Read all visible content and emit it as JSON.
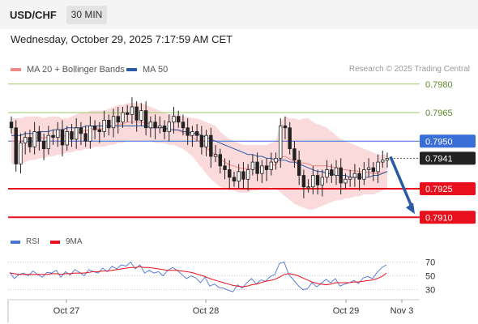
{
  "header": {
    "symbol": "USD/CHF",
    "timeframe": "30 MIN"
  },
  "datetime": "Wednesday, October 29, 2025 7:17:59 AM CET",
  "legend": {
    "ma_label": "MA 20 + Bollinger Bands",
    "ma50_label": "MA 50",
    "rsi_label": "RSI",
    "nine_ma_label": "9MA"
  },
  "credit": "Research © 2025 Trading Central",
  "colors": {
    "ma20": "#f08a8a",
    "bands_fill": "#f9d4d4",
    "ma50": "#2b5aa8",
    "resistance": "#99cc66",
    "support": "#e8101c",
    "pivot": "#3a6fd8",
    "arrow": "#2a59a6",
    "candle": "#222222",
    "rsi": "#4a73d9",
    "nine_ma": "#e8101c"
  },
  "chart_data": {
    "type": "candlestick",
    "x_tick_labels": [
      "Oct 27",
      "Oct 28",
      "Oct 29",
      "Nov 3"
    ],
    "levels": [
      {
        "value": 0.798,
        "label": "0.7980",
        "kind": "resistance"
      },
      {
        "value": 0.7965,
        "label": "0.7965",
        "kind": "resistance"
      },
      {
        "value": 0.795,
        "label": "0.7950",
        "kind": "pivot"
      },
      {
        "value": 0.7941,
        "label": "0.7941",
        "kind": "last"
      },
      {
        "value": 0.7925,
        "label": "0.7925",
        "kind": "support"
      },
      {
        "value": 0.791,
        "label": "0.7910",
        "kind": "support"
      }
    ],
    "price_range": [
      0.7905,
      0.7985
    ],
    "close": [
      0.7957,
      0.7938,
      0.7949,
      0.7952,
      0.7947,
      0.7955,
      0.795,
      0.7946,
      0.7953,
      0.7952,
      0.7956,
      0.7948,
      0.7955,
      0.7951,
      0.7957,
      0.7954,
      0.795,
      0.7958,
      0.7956,
      0.7955,
      0.7961,
      0.7957,
      0.7963,
      0.796,
      0.7965,
      0.7964,
      0.7968,
      0.7961,
      0.7966,
      0.7957,
      0.796,
      0.7957,
      0.7958,
      0.7955,
      0.796,
      0.7963,
      0.796,
      0.7957,
      0.7953,
      0.7955,
      0.7953,
      0.7947,
      0.7953,
      0.7942,
      0.7943,
      0.7937,
      0.7935,
      0.7931,
      0.7929,
      0.7934,
      0.793,
      0.7935,
      0.7939,
      0.7933,
      0.7937,
      0.7935,
      0.7939,
      0.7941,
      0.7958,
      0.7957,
      0.7946,
      0.794,
      0.7932,
      0.7926,
      0.7926,
      0.7932,
      0.7927,
      0.7931,
      0.7935,
      0.7932,
      0.7936,
      0.7928,
      0.793,
      0.7931,
      0.7933,
      0.793,
      0.7935,
      0.7936,
      0.7934,
      0.7939,
      0.794,
      0.7941
    ],
    "bb_upper": [
      0.7962,
      0.7962,
      0.7962,
      0.7963,
      0.7963,
      0.7963,
      0.7963,
      0.7962,
      0.7963,
      0.7963,
      0.7963,
      0.7962,
      0.7962,
      0.7963,
      0.7964,
      0.7965,
      0.7965,
      0.7966,
      0.7966,
      0.7966,
      0.7966,
      0.7967,
      0.7968,
      0.7969,
      0.7969,
      0.797,
      0.797,
      0.797,
      0.797,
      0.7969,
      0.7968,
      0.7967,
      0.7966,
      0.7965,
      0.7964,
      0.7964,
      0.7964,
      0.7963,
      0.7963,
      0.7962,
      0.7962,
      0.7961,
      0.796,
      0.7959,
      0.7958,
      0.7955,
      0.7953,
      0.7951,
      0.795,
      0.7949,
      0.7948,
      0.7948,
      0.7948,
      0.7948,
      0.7948,
      0.7948,
      0.7949,
      0.795,
      0.796,
      0.7963,
      0.7962,
      0.7962,
      0.7961,
      0.7962,
      0.7962,
      0.796,
      0.7959,
      0.7958,
      0.7957,
      0.7955,
      0.7953,
      0.7951,
      0.795,
      0.7949,
      0.7948,
      0.7947,
      0.7946,
      0.7945,
      0.7944,
      0.7943,
      0.7943,
      0.7943
    ],
    "bb_lower": [
      0.7938,
      0.7938,
      0.7938,
      0.7939,
      0.794,
      0.794,
      0.7941,
      0.7941,
      0.7942,
      0.7942,
      0.7943,
      0.7943,
      0.7944,
      0.7944,
      0.7945,
      0.7945,
      0.7946,
      0.7946,
      0.7947,
      0.7947,
      0.7947,
      0.7948,
      0.7948,
      0.7949,
      0.7949,
      0.795,
      0.795,
      0.795,
      0.795,
      0.795,
      0.795,
      0.7949,
      0.7949,
      0.7949,
      0.7948,
      0.7948,
      0.7947,
      0.7946,
      0.7944,
      0.7942,
      0.7939,
      0.7936,
      0.7933,
      0.793,
      0.7928,
      0.7926,
      0.7925,
      0.7924,
      0.7924,
      0.7923,
      0.7923,
      0.7923,
      0.7924,
      0.7924,
      0.7925,
      0.7925,
      0.7926,
      0.7925,
      0.7923,
      0.7921,
      0.7919,
      0.7917,
      0.7916,
      0.7915,
      0.7914,
      0.7914,
      0.7915,
      0.7916,
      0.7917,
      0.7918,
      0.7919,
      0.7919,
      0.792,
      0.792,
      0.7921,
      0.7921,
      0.7922,
      0.7922,
      0.7922,
      0.7923,
      0.7924,
      0.7925
    ],
    "ma50": [
      0.7953,
      0.7953,
      0.7953,
      0.7954,
      0.7954,
      0.7954,
      0.7955,
      0.7955,
      0.7955,
      0.7956,
      0.7956,
      0.7956,
      0.7957,
      0.7957,
      0.7957,
      0.7957,
      0.7958,
      0.7958,
      0.7958,
      0.7958,
      0.7958,
      0.7958,
      0.7958,
      0.7958,
      0.7958,
      0.7958,
      0.7958,
      0.7958,
      0.7958,
      0.7958,
      0.7957,
      0.7957,
      0.7957,
      0.7957,
      0.7956,
      0.7956,
      0.7956,
      0.7955,
      0.7955,
      0.7954,
      0.7954,
      0.7953,
      0.7952,
      0.7951,
      0.795,
      0.7949,
      0.7948,
      0.7947,
      0.7946,
      0.7945,
      0.7944,
      0.7943,
      0.7943,
      0.7942,
      0.7942,
      0.7941,
      0.7941,
      0.794,
      0.794,
      0.794,
      0.7939,
      0.7939,
      0.7938,
      0.7937,
      0.7936,
      0.7935,
      0.7934,
      0.7934,
      0.7933,
      0.7933,
      0.7932,
      0.7932,
      0.7932,
      0.7931,
      0.7931,
      0.7931,
      0.7931,
      0.7931,
      0.7932,
      0.7932,
      0.7933,
      0.7934
    ],
    "forecast": {
      "from": 0.7941,
      "to": 0.791
    },
    "rsi": {
      "ticks": [
        70,
        50,
        30
      ],
      "range": [
        20,
        80
      ],
      "values": [
        55,
        46,
        52,
        54,
        50,
        57,
        52,
        48,
        55,
        54,
        58,
        48,
        56,
        51,
        59,
        55,
        50,
        59,
        56,
        54,
        61,
        56,
        64,
        60,
        66,
        64,
        70,
        60,
        66,
        54,
        58,
        54,
        56,
        50,
        58,
        62,
        58,
        52,
        46,
        50,
        47,
        40,
        48,
        35,
        38,
        33,
        32,
        29,
        27,
        37,
        32,
        40,
        46,
        38,
        44,
        42,
        49,
        52,
        68,
        70,
        52,
        44,
        36,
        30,
        31,
        40,
        34,
        39,
        45,
        40,
        46,
        35,
        38,
        40,
        43,
        39,
        47,
        49,
        46,
        55,
        62,
        66
      ],
      "nine_ma": [
        54,
        53,
        52,
        52,
        52,
        52,
        52,
        52,
        52,
        53,
        53,
        52,
        53,
        53,
        54,
        54,
        54,
        55,
        56,
        56,
        57,
        57,
        58,
        59,
        60,
        61,
        62,
        62,
        63,
        62,
        62,
        61,
        60,
        59,
        58,
        58,
        58,
        57,
        56,
        55,
        53,
        51,
        49,
        46,
        44,
        42,
        40,
        38,
        36,
        35,
        34,
        35,
        37,
        38,
        40,
        42,
        43,
        45,
        48,
        52,
        53,
        52,
        50,
        47,
        44,
        41,
        39,
        38,
        37,
        38,
        40,
        40,
        40,
        40,
        41,
        41,
        42,
        43,
        44,
        46,
        49,
        54
      ]
    }
  }
}
